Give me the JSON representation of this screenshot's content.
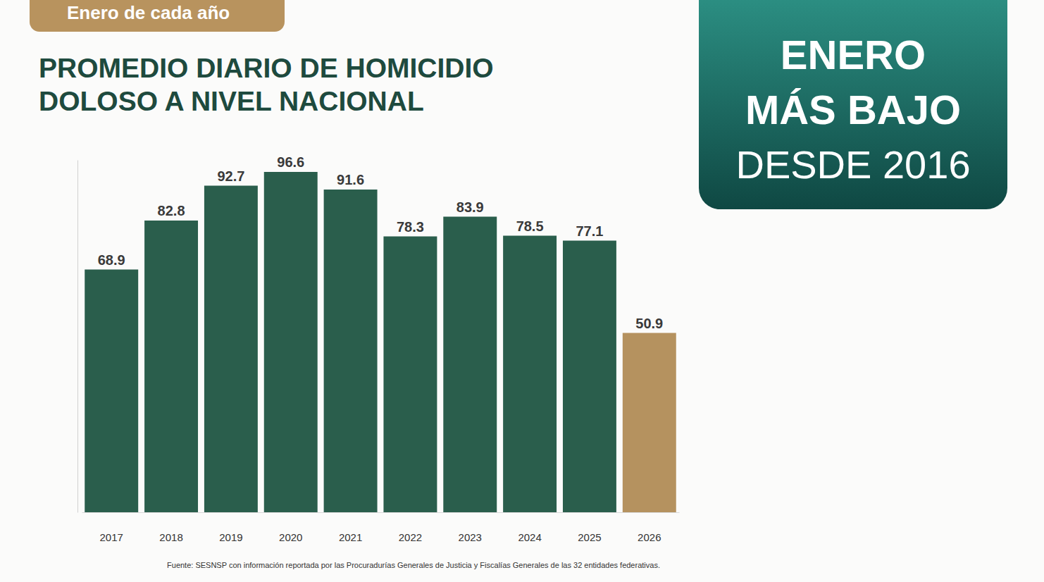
{
  "chart_data": {
    "type": "bar",
    "title": "PROMEDIO DIARIO DE HOMICIDIO DOLOSO A NIVEL NACIONAL",
    "subtitle": "Enero de cada año",
    "annotations": [
      "ENERO",
      "MÁS BAJO",
      "DESDE 2016"
    ],
    "source": "Fuente: SESNSP con información reportada por las Procuradurías Generales de Justicia y Fiscalías Generales de las 32 entidades federativas.",
    "categories": [
      "2017",
      "2018",
      "2019",
      "2020",
      "2021",
      "2022",
      "2023",
      "2024",
      "2025",
      "2026"
    ],
    "values": [
      68.9,
      82.8,
      92.7,
      96.6,
      91.6,
      78.3,
      83.9,
      78.5,
      77.1,
      50.9
    ],
    "colors": [
      "#2a5e4c",
      "#2a5e4c",
      "#2a5e4c",
      "#2a5e4c",
      "#2a5e4c",
      "#2a5e4c",
      "#2a5e4c",
      "#2a5e4c",
      "#2a5e4c",
      "#b5925f"
    ],
    "ylim": [
      0,
      100
    ],
    "data_labels": true,
    "tick_labels": "x"
  }
}
